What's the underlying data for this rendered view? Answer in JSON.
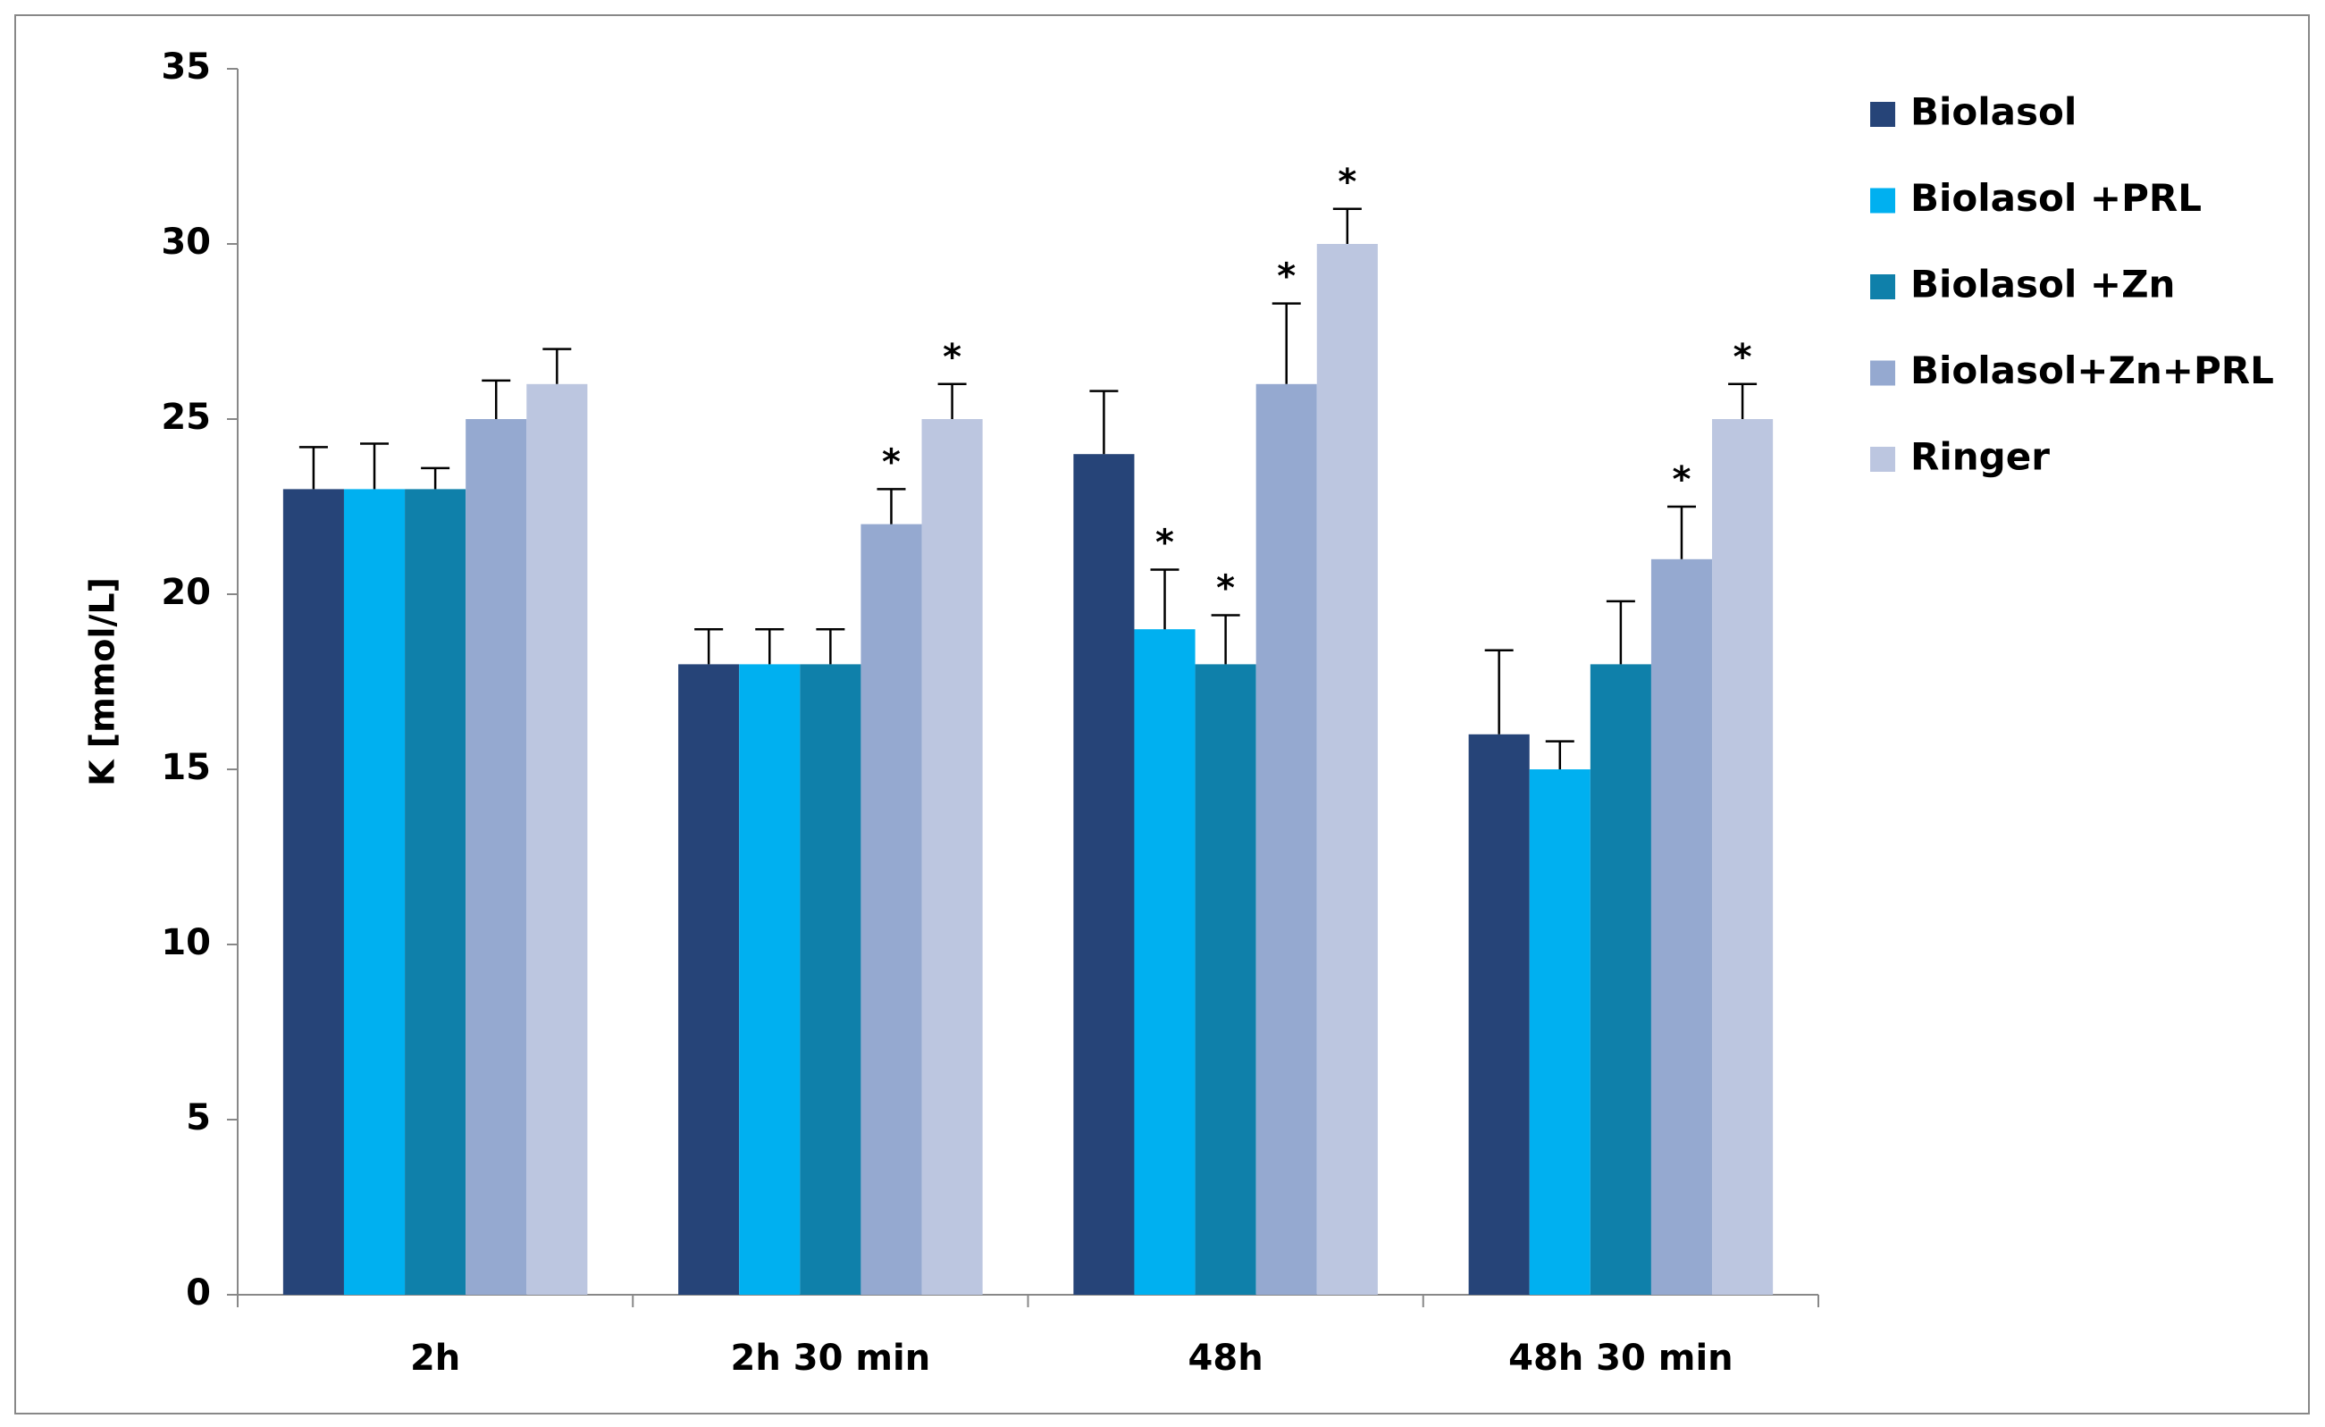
{
  "chart_data": {
    "type": "bar",
    "y_label": "K [mmol/L]",
    "categories": [
      "2h",
      "2h 30 min",
      "48h",
      "48h 30 min"
    ],
    "ylim": [
      0,
      35
    ],
    "yticks": [
      0,
      5,
      10,
      15,
      20,
      25,
      30,
      35
    ],
    "grid": false,
    "legend": "right",
    "series": [
      {
        "name": "Biolasol",
        "color": "#264478",
        "values": [
          23,
          18,
          24,
          16
        ],
        "errors": [
          1.2,
          1.0,
          1.8,
          2.4
        ],
        "markers": [
          null,
          null,
          null,
          null
        ]
      },
      {
        "name": "Biolasol +PRL",
        "color": "#00b0f0",
        "values": [
          23,
          18,
          19,
          15
        ],
        "errors": [
          1.3,
          1.0,
          1.7,
          0.8
        ],
        "markers": [
          null,
          null,
          "*",
          null
        ]
      },
      {
        "name": "Biolasol +Zn",
        "color": "#0f80aa",
        "values": [
          23,
          18,
          18,
          18
        ],
        "errors": [
          0.6,
          1.0,
          1.4,
          1.8
        ],
        "markers": [
          null,
          null,
          "*",
          null
        ]
      },
      {
        "name": "Biolasol+Zn+PRL",
        "color": "#95a9d0",
        "values": [
          25,
          22,
          26,
          21
        ],
        "errors": [
          1.1,
          1.0,
          2.3,
          1.5
        ],
        "markers": [
          null,
          "*",
          "*",
          "*"
        ]
      },
      {
        "name": "Ringer",
        "color": "#bcc6e0",
        "values": [
          26,
          25,
          30,
          25
        ],
        "errors": [
          1.0,
          1.0,
          1.0,
          1.0
        ],
        "markers": [
          null,
          "*",
          "*",
          "*"
        ]
      }
    ]
  }
}
